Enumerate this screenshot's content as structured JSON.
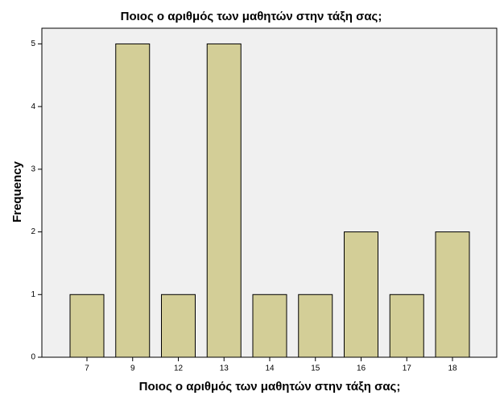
{
  "chart_data": {
    "type": "bar",
    "title": "Ποιος ο αριθμός των μαθητών στην τάξη σας;",
    "x_label": "Ποιος ο αριθμός των μαθητών στην τάξη σας;",
    "y_label": "Frequency",
    "categories": [
      "7",
      "9",
      "12",
      "13",
      "14",
      "15",
      "16",
      "17",
      "18"
    ],
    "values": [
      1,
      5,
      1,
      5,
      1,
      1,
      2,
      1,
      2
    ],
    "color": "#d3ce97",
    "ylim": [
      0,
      5.25
    ],
    "yticks": [
      0,
      1,
      2,
      3,
      4,
      5
    ],
    "grid": false
  }
}
